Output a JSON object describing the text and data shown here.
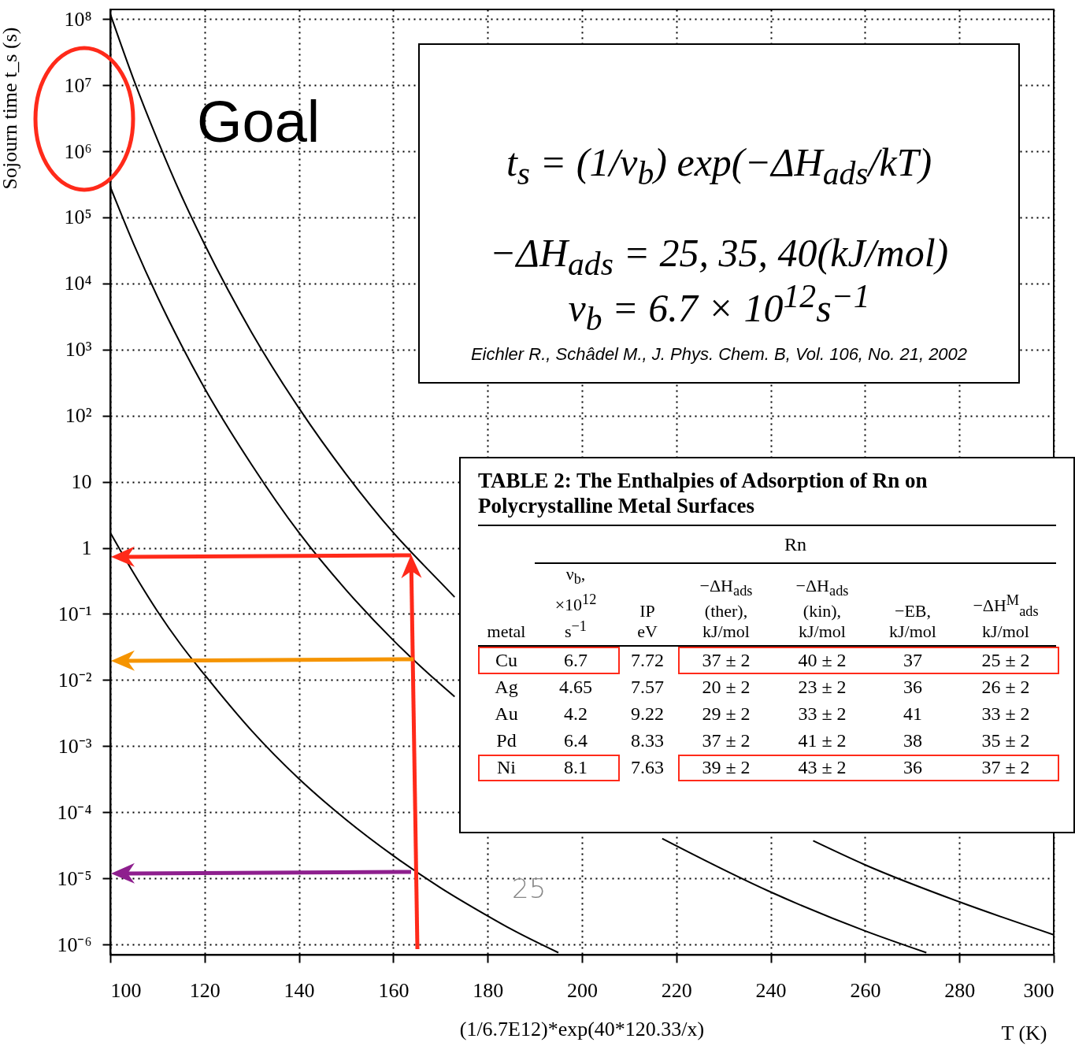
{
  "chart_data": {
    "type": "line",
    "log": "y",
    "grid": true,
    "line_style": "solid",
    "xlabel": "T (K)",
    "ylabel": "Sojourn time t_s (s)",
    "xlim": [
      100,
      300
    ],
    "xticks": [
      100,
      120,
      140,
      160,
      180,
      200,
      220,
      240,
      260,
      280,
      300
    ],
    "ylim": [
      7e-07,
      140000000.0
    ],
    "yticks": [
      {
        "value": 1e-06,
        "label": "10⁻⁶"
      },
      {
        "value": 1e-05,
        "label": "10⁻⁵"
      },
      {
        "value": 0.0001,
        "label": "10⁻⁴"
      },
      {
        "value": 0.001,
        "label": "10⁻³"
      },
      {
        "value": 0.01,
        "label": "10⁻²"
      },
      {
        "value": 0.1,
        "label": "10⁻¹"
      },
      1,
      10,
      {
        "value": 100,
        "label": "10²"
      },
      {
        "value": 1000,
        "label": "10³"
      },
      {
        "value": 10000.0,
        "label": "10⁴"
      },
      {
        "value": 100000.0,
        "label": "10⁵"
      },
      {
        "value": 1000000.0,
        "label": "10⁶"
      },
      {
        "value": 10000000.0,
        "label": "10⁷"
      },
      {
        "value": 100000000.0,
        "label": "10⁸"
      }
    ],
    "series": [
      {
        "color": "#000000",
        "x": [
          100,
          105,
          110,
          115,
          120,
          130,
          140,
          150,
          160,
          170,
          173,
          200,
          249,
          260,
          280,
          300
        ],
        "values": [
          120000000.0,
          12000000.0,
          1500000.0,
          220000.0,
          39000.0,
          1800.0,
          130,
          13,
          1.7,
          0.3,
          0.18,
          null,
          3.7e-05,
          1.6e-05,
          4.4e-06,
          1.4e-06
        ]
      },
      {
        "color": "#000000",
        "x": [
          100,
          105,
          110,
          115,
          120,
          130,
          140,
          150,
          160,
          170,
          173,
          190,
          217,
          220,
          240,
          260,
          273
        ],
        "values": [
          290000.0,
          39000.0,
          6300.0,
          1200.0,
          260,
          18,
          1.7,
          0.23,
          0.04,
          0.0086,
          0.0056,
          null,
          4e-05,
          3.1e-05,
          6.2e-06,
          1.6e-06,
          7.5e-07
        ]
      },
      {
        "color": "#000000",
        "x": [
          100,
          105,
          110,
          115,
          120,
          130,
          140,
          150,
          160,
          170,
          180,
          185,
          195
        ],
        "values": [
          1.7,
          0.41,
          0.11,
          0.034,
          0.012,
          0.0017,
          0.00032,
          7.7e-05,
          2.2e-05,
          7.2e-06,
          2.7e-06,
          1.7e-06,
          7.5e-07
        ]
      }
    ],
    "annotations": [
      "Goal",
      "t$_{s}$ = (1/ν$_{b}$) exp(−ΔH$_{ads}$/kT)",
      "−ΔH$_{ads}$ = 25, 35, 40(kJ/mol)",
      "ν$_{b}$ = 6.7 × 10$^{12}$s$^{−1}$",
      "Eichler R., Schâdel M., J. Phys. Chem. B, Vol. 106, No. 21, 2002",
      "TABLE 2: The Enthalpies of Adsorption of Rn on Polycrystalline Metal Surfaces",
      "Rn",
      "metal",
      "ν$_{b}$, ×10$^{12}$ s$^{−1}$",
      "IP eV",
      "−ΔH$_{ads}$ (ther), kJ/mol",
      "−ΔH$_{ads}$ (kin), kJ/mol",
      "−EB, kJ/mol",
      "−ΔH$^{M}$$_{ads}$ kJ/mol",
      "Cu",
      "6.7",
      "7.72",
      "37 ± 2",
      "40 ± 2",
      "37",
      "25 ± 2",
      "Ag",
      "4.65",
      "7.57",
      "20 ± 2",
      "23 ± 2",
      "36",
      "26 ± 2",
      "Au",
      "4.2",
      "9.22",
      "29 ± 2",
      "33 ± 2",
      "41",
      "33 ± 2",
      "Pd",
      "6.4",
      "8.33",
      "37 ± 2",
      "41 ± 2",
      "38",
      "35 ± 2",
      "Ni",
      "8.1",
      "7.63",
      "39 ± 2",
      "43 ± 2",
      "36",
      "37 ± 2",
      "25",
      "(1/6.7E12)*exp(40*120.33/x)"
    ]
  }
}
